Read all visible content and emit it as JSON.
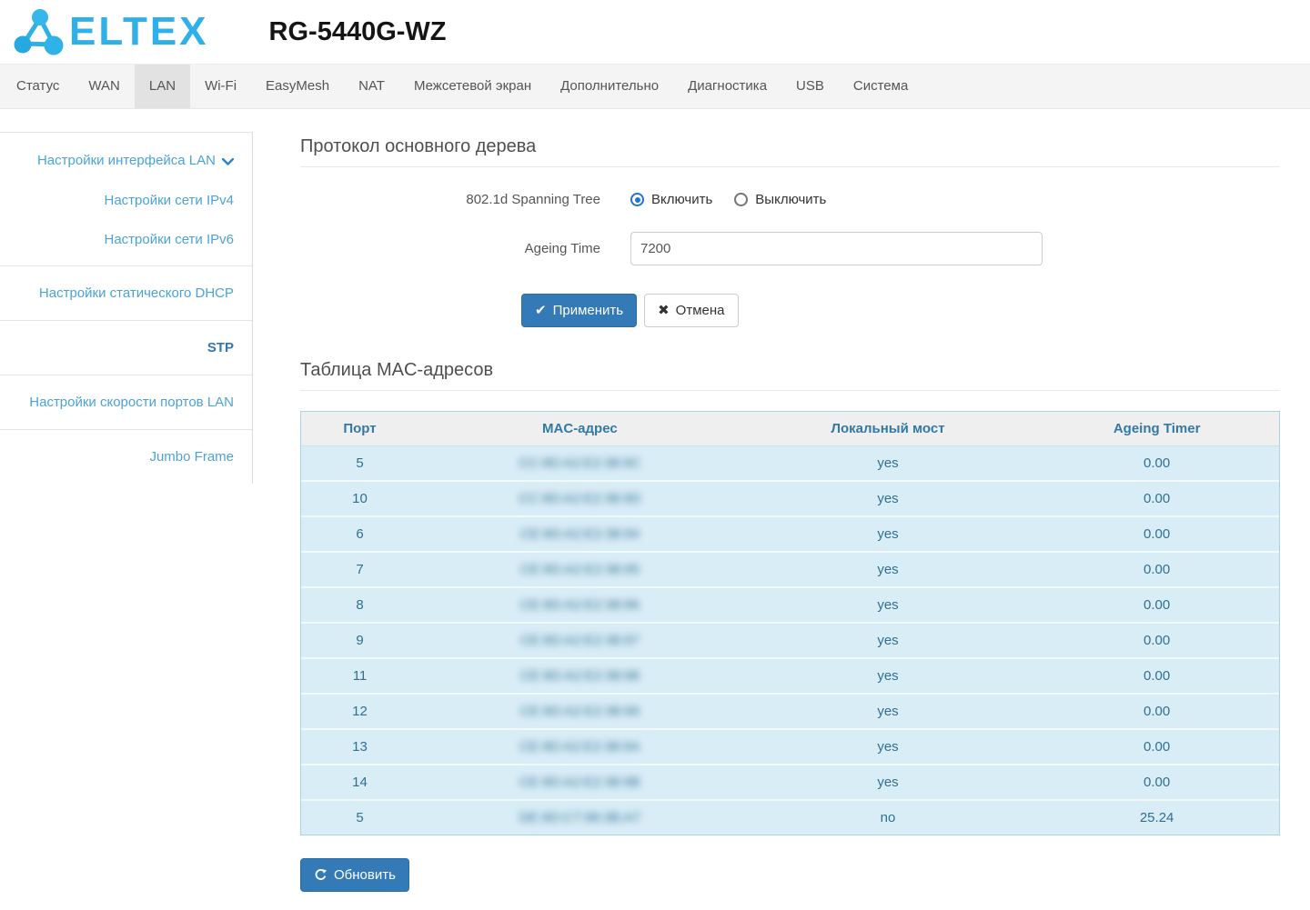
{
  "header": {
    "logo_text": "ELTEX",
    "device_model": "RG-5440G-WZ"
  },
  "nav": {
    "tabs": [
      {
        "id": "status",
        "label": "Статус",
        "active": false
      },
      {
        "id": "wan",
        "label": "WAN",
        "active": false
      },
      {
        "id": "lan",
        "label": "LAN",
        "active": true
      },
      {
        "id": "wifi",
        "label": "Wi-Fi",
        "active": false
      },
      {
        "id": "easymesh",
        "label": "EasyMesh",
        "active": false
      },
      {
        "id": "nat",
        "label": "NAT",
        "active": false
      },
      {
        "id": "firewall",
        "label": "Межсетевой экран",
        "active": false
      },
      {
        "id": "advanced",
        "label": "Дополнительно",
        "active": false
      },
      {
        "id": "diagnostics",
        "label": "Диагностика",
        "active": false
      },
      {
        "id": "usb",
        "label": "USB",
        "active": false
      },
      {
        "id": "system",
        "label": "Система",
        "active": false
      }
    ]
  },
  "sidebar": {
    "items": [
      {
        "id": "lan-interface",
        "label": "Настройки интерфейса LAN",
        "type": "first",
        "chevron": true,
        "active": false,
        "bordered": false
      },
      {
        "id": "ipv4",
        "label": "Настройки сети IPv4",
        "type": "sub",
        "chevron": false,
        "active": false,
        "bordered": false
      },
      {
        "id": "ipv6",
        "label": "Настройки сети IPv6",
        "type": "lastsub",
        "chevron": false,
        "active": false,
        "bordered": true
      },
      {
        "id": "static-dhcp",
        "label": "Настройки статического DHCP",
        "type": "group",
        "chevron": false,
        "active": false,
        "bordered": true
      },
      {
        "id": "stp",
        "label": "STP",
        "type": "group",
        "chevron": false,
        "active": true,
        "bordered": true
      },
      {
        "id": "port-speed",
        "label": "Настройки скорости портов LAN",
        "type": "group",
        "chevron": false,
        "active": false,
        "bordered": true
      },
      {
        "id": "jumbo-frame",
        "label": "Jumbo Frame",
        "type": "group",
        "chevron": false,
        "active": false,
        "bordered": false
      }
    ]
  },
  "stp_section": {
    "title": "Протокол основного дерева",
    "spanning_tree_label": "802.1d Spanning Tree",
    "radio_on_label": "Включить",
    "radio_off_label": "Выключить",
    "radio_selected": "Включить",
    "ageing_label": "Ageing Time",
    "ageing_value": "7200",
    "apply_label": "Применить",
    "cancel_label": "Отмена",
    "apply_icon": "✔",
    "cancel_icon": "✖"
  },
  "mac_table": {
    "title": "Таблица MAC-адресов",
    "columns": [
      "Порт",
      "MAC-адрес",
      "Локальный мост",
      "Ageing Timer"
    ],
    "macs_redacted": true,
    "rows": [
      {
        "port": "5",
        "mac": "CC:9D:A2:E2:38:9C",
        "local_bridge": "yes",
        "ageing": "0.00"
      },
      {
        "port": "10",
        "mac": "CC:9D:A2:E2:38:9D",
        "local_bridge": "yes",
        "ageing": "0.00"
      },
      {
        "port": "6",
        "mac": "CE:9D:A2:E2:38:94",
        "local_bridge": "yes",
        "ageing": "0.00"
      },
      {
        "port": "7",
        "mac": "CE:9D:A2:E2:38:95",
        "local_bridge": "yes",
        "ageing": "0.00"
      },
      {
        "port": "8",
        "mac": "CE:9D:A2:E2:38:96",
        "local_bridge": "yes",
        "ageing": "0.00"
      },
      {
        "port": "9",
        "mac": "CE:9D:A2:E2:38:97",
        "local_bridge": "yes",
        "ageing": "0.00"
      },
      {
        "port": "11",
        "mac": "CE:9D:A2:E2:38:98",
        "local_bridge": "yes",
        "ageing": "0.00"
      },
      {
        "port": "12",
        "mac": "CE:9D:A2:E2:38:99",
        "local_bridge": "yes",
        "ageing": "0.00"
      },
      {
        "port": "13",
        "mac": "CE:9D:A2:E2:38:9A",
        "local_bridge": "yes",
        "ageing": "0.00"
      },
      {
        "port": "14",
        "mac": "CE:9D:A2:E2:38:9B",
        "local_bridge": "yes",
        "ageing": "0.00"
      },
      {
        "port": "5",
        "mac": "DE:9D:C7:98:3B:A7",
        "local_bridge": "no",
        "ageing": "25.24"
      }
    ],
    "refresh_label": "Обновить"
  },
  "colors": {
    "brand_blue": "#2fb0e8",
    "primary_button": "#337ab7",
    "primary_button_border": "#2e6da4",
    "table_row_bg": "#d9edf7",
    "table_text": "#31708f",
    "table_header_bg": "#efefef",
    "table_header_text": "#3279a5",
    "sidebar_link": "#4aa3d8",
    "sidebar_active": "#3377b0",
    "nav_bg": "#f4f4f4",
    "nav_active_bg": "#e2e2e2",
    "radio_blue": "#2173d4"
  }
}
